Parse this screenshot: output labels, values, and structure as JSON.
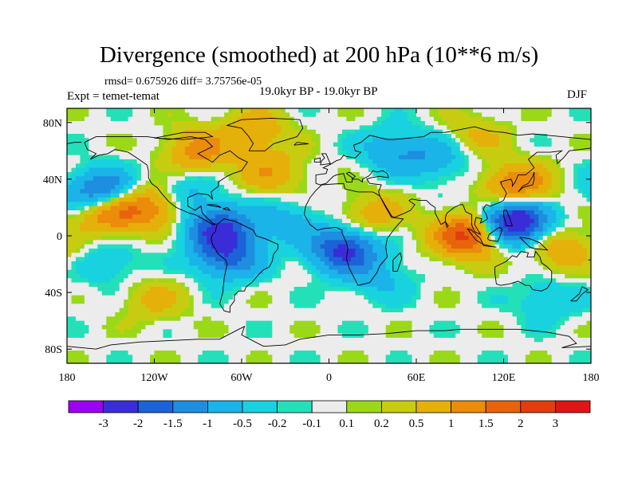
{
  "title": "Divergence (smoothed) at 200 hPa (10**6 m/s)",
  "stats": "rmsd= 0.675926 diff= 3.75756e-05",
  "experiment": "Expt = temet-temat",
  "period": "19.0kyr BP - 19.0kyr BP",
  "season": "DJF",
  "map_data": {
    "type": "filled-contour-map",
    "projection": "cylindrical-equidistant",
    "lon_range": [
      -180,
      180
    ],
    "lat_range": [
      -90,
      90
    ],
    "lat_ticks": [
      {
        "value": 80,
        "label": "80N"
      },
      {
        "value": 40,
        "label": "40N"
      },
      {
        "value": 0,
        "label": "0"
      },
      {
        "value": -40,
        "label": "40S"
      },
      {
        "value": -80,
        "label": "80S"
      }
    ],
    "lon_ticks": [
      {
        "value": -180,
        "label": "180"
      },
      {
        "value": -120,
        "label": "120W"
      },
      {
        "value": -60,
        "label": "60W"
      },
      {
        "value": 0,
        "label": "0"
      },
      {
        "value": 60,
        "label": "60E"
      },
      {
        "value": 120,
        "label": "120E"
      },
      {
        "value": 180,
        "label": "180"
      }
    ],
    "features": [
      {
        "lon": -155,
        "lat": 30,
        "value": -2.2
      },
      {
        "lon": -150,
        "lat": 18,
        "value": 2.0
      },
      {
        "lon": -120,
        "lat": 22,
        "value": 1.3
      },
      {
        "lon": -100,
        "lat": 30,
        "value": -0.8
      },
      {
        "lon": -75,
        "lat": 5,
        "value": -2.0
      },
      {
        "lon": -70,
        "lat": -15,
        "value": -1.6
      },
      {
        "lon": -30,
        "lat": 10,
        "value": -0.7
      },
      {
        "lon": -40,
        "lat": 45,
        "value": 0.9
      },
      {
        "lon": -90,
        "lat": 60,
        "value": 1.2
      },
      {
        "lon": 10,
        "lat": -10,
        "value": -2.2
      },
      {
        "lon": 30,
        "lat": 15,
        "value": 0.8
      },
      {
        "lon": 35,
        "lat": -30,
        "value": -0.6
      },
      {
        "lon": 45,
        "lat": 60,
        "value": -0.9
      },
      {
        "lon": 75,
        "lat": 55,
        "value": -0.8
      },
      {
        "lon": 95,
        "lat": 0,
        "value": 2.2
      },
      {
        "lon": 128,
        "lat": 10,
        "value": -3.0
      },
      {
        "lon": 130,
        "lat": 35,
        "value": 1.6
      },
      {
        "lon": 160,
        "lat": -10,
        "value": 0.9
      },
      {
        "lon": -150,
        "lat": -20,
        "value": -0.5
      },
      {
        "lon": -120,
        "lat": -45,
        "value": 0.6
      },
      {
        "lon": 150,
        "lat": -45,
        "value": -0.5
      },
      {
        "lon": -50,
        "lat": 75,
        "value": 0.8
      },
      {
        "lon": 100,
        "lat": 70,
        "value": 0.6
      }
    ]
  },
  "colorbar": {
    "colors": [
      "#9b00f2",
      "#3a2dd8",
      "#1b63d6",
      "#1e8ee0",
      "#1ab4e8",
      "#18d2df",
      "#24e0b8",
      "#ececec",
      "#9bd918",
      "#c8cc10",
      "#e6b00a",
      "#eb8c0a",
      "#e8640c",
      "#e23d0c",
      "#e01515"
    ],
    "labels": [
      "-3",
      "-2",
      "-1.5",
      "-1",
      "-0.5",
      "-0.2",
      "-0.1",
      "0.1",
      "0.2",
      "0.5",
      "1",
      "1.5",
      "2",
      "3"
    ]
  }
}
